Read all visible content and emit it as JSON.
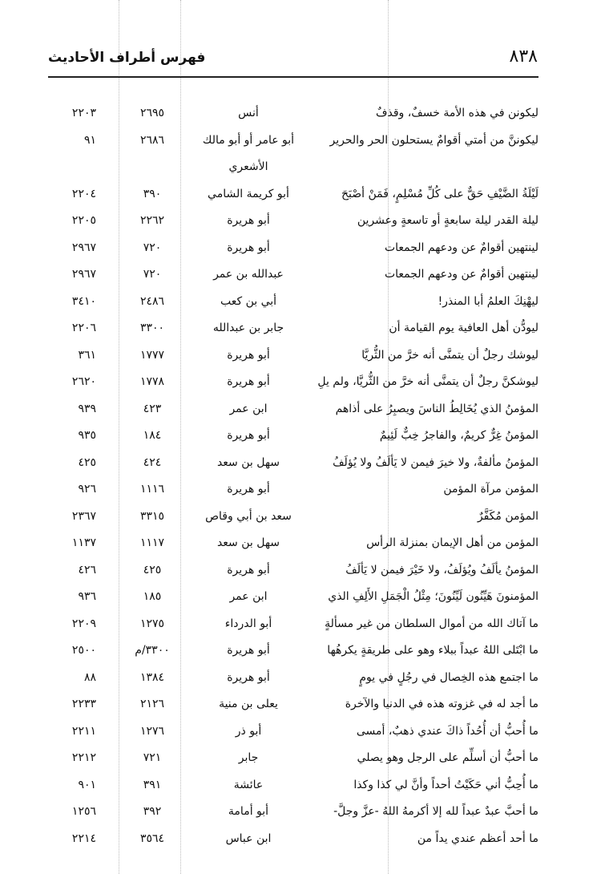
{
  "header": {
    "page_number": "٨٣٨",
    "title": "فهرس أطراف الأحاديث"
  },
  "rows": [
    {
      "hadith": "ليكونن في هذه الأمة خسفٌ، وقذفٌ",
      "narrator": "أنس",
      "ref1": "٢٦٩٥",
      "ref2": "٢٢٠٣"
    },
    {
      "hadith": "ليكوننَّ من أمتي أقوامٌ يستحلون الحر والحرير",
      "narrator": "أبو عامر أو أبو مالك",
      "ref1": "٢٦٨٦",
      "ref2": "٩١"
    },
    {
      "hadith": "",
      "narrator": "الأشعري",
      "ref1": "",
      "ref2": ""
    },
    {
      "hadith": "لَيْلَةُ الضَّيْفِ حَقٌّ على كُلِّ مُسْلِمٍ، فَمَنْ أصْبَحَ",
      "narrator": "أبو كريمة الشامي",
      "ref1": "٣٩٠",
      "ref2": "٢٢٠٤"
    },
    {
      "hadith": "ليلة القدر ليلة سابعةٍ أو تاسعةٍ وعشرين",
      "narrator": "أبو هريرة",
      "ref1": "٢٢٦٢",
      "ref2": "٢٢٠٥"
    },
    {
      "hadith": "لينتهين أقوامٌ عن ودعهم الجمعات",
      "narrator": "أبو هريرة",
      "ref1": "٧٢٠",
      "ref2": "٢٩٦٧"
    },
    {
      "hadith": "لينتهين أقوامٌ عن ودعهم الجمعات",
      "narrator": "عبدالله بن عمر",
      "ref1": "٧٢٠",
      "ref2": "٢٩٦٧"
    },
    {
      "hadith": "ليهْنِكَ العلمُ أبا المنذر!",
      "narrator": "أبي بن كعب",
      "ref1": "٢٤٨٦",
      "ref2": "٣٤١٠"
    },
    {
      "hadith": "ليودُّن أهل العافية يوم القيامة أن",
      "narrator": "جابر بن عبدالله",
      "ref1": "٣٣٠٠",
      "ref2": "٢٢٠٦"
    },
    {
      "hadith": "ليوشك رجلٌ أن يتمنَّى أنه خرَّ من الثُّريَّا",
      "narrator": "أبو هريرة",
      "ref1": "١٧٧٧",
      "ref2": "٣٦١"
    },
    {
      "hadith": "ليوشكنَّ رجلٌ أن يتمنَّى أنه خرَّ من الثُّريَّا، ولم يلِ",
      "narrator": "أبو هريرة",
      "ref1": "١٧٧٨",
      "ref2": "٢٦٢٠"
    },
    {
      "hadith": "المؤمنُ الذي يُخَالِطُ الناسَ ويصبِرُ على أذاهم",
      "narrator": "ابن عمر",
      "ref1": "٤٢٣",
      "ref2": "٩٣٩"
    },
    {
      "hadith": "المؤمنُ غِرٌّ كريمٌ، والفاجرُ خِبٌّ لَئِيمٌ",
      "narrator": "أبو هريرة",
      "ref1": "١٨٤",
      "ref2": "٩٣٥"
    },
    {
      "hadith": "المؤمنُ مألفةٌ، ولا خيرَ فيمن لا يَألَفُ ولا يُؤلَفُ",
      "narrator": "سهل بن سعد",
      "ref1": "٤٢٤",
      "ref2": "٤٢٥"
    },
    {
      "hadith": "المؤمن مرآة المؤمن",
      "narrator": "أبو هريرة",
      "ref1": "١١١٦",
      "ref2": "٩٢٦"
    },
    {
      "hadith": "المؤمن مُكَفَّرٌ",
      "narrator": "سعد بن أبي وقاص",
      "ref1": "٣٣١٥",
      "ref2": "٢٣٦٧"
    },
    {
      "hadith": "المؤمن من أهل الإيمان بمنزلة الرأس",
      "narrator": "سهل بن سعد",
      "ref1": "١١١٧",
      "ref2": "١١٣٧"
    },
    {
      "hadith": "المؤمنُ يألَفُ ويُؤلَفُ، ولا خَيْرَ فيمن لا يَألَفُ",
      "narrator": "أبو هريرة",
      "ref1": "٤٢٥",
      "ref2": "٤٢٦"
    },
    {
      "hadith": "المؤمنونَ هَيِّنُون لَيِّنُونَ؛ مِثْلُ الْجَمَلِ الأَلِفِ الذي",
      "narrator": "ابن عمر",
      "ref1": "١٨٥",
      "ref2": "٩٣٦"
    },
    {
      "hadith": "ما آتاك الله من أموال السلطان من غير مسألةٍ",
      "narrator": "أبو الدرداء",
      "ref1": "١٢٧٥",
      "ref2": "٢٢٠٩"
    },
    {
      "hadith": "ما ابْتَلى اللهُ عبداً ببلاء وهو على طريقةٍ يكرهُها",
      "narrator": "أبو هريرة",
      "ref1": "٣٣٠٠/م",
      "ref2": "٢٥٠٠"
    },
    {
      "hadith": "ما اجتمع هذه الخِصال في رجُلٍ في يومٍ",
      "narrator": "أبو هريرة",
      "ref1": "١٣٨٤",
      "ref2": "٨٨"
    },
    {
      "hadith": "ما أجد له في غزوته هذه في الدنيا والآخرة",
      "narrator": "يعلى بن منية",
      "ref1": "٢١٢٦",
      "ref2": "٢٢٣٣"
    },
    {
      "hadith": "ما أُحبُّ أن أُحُداً ذاكَ عندي ذهبٌ، أمسى",
      "narrator": "أبو ذر",
      "ref1": "١٢٧٦",
      "ref2": "٢٢١١"
    },
    {
      "hadith": "ما أحبُّ أن أسلِّم على الرجل وهو يصلي",
      "narrator": "جابر",
      "ref1": "٧٢١",
      "ref2": "٢٢١٢"
    },
    {
      "hadith": "ما أُحِبُّ أني حَكَيْتُ أحداً وأنَّ لي كذا وكذا",
      "narrator": "عائشة",
      "ref1": "٣٩١",
      "ref2": "٩٠١"
    },
    {
      "hadith": "ما أحبَّ عبدٌ عبداً لله إلا أكرمهُ اللهُ -عزَّ وجلَّ-",
      "narrator": "أبو أمامة",
      "ref1": "٣٩٢",
      "ref2": "١٢٥٦"
    },
    {
      "hadith": "ما أحد أعظم عندي يداً من",
      "narrator": "ابن عباس",
      "ref1": "٣٥٦٤",
      "ref2": "٢٢١٤"
    }
  ]
}
